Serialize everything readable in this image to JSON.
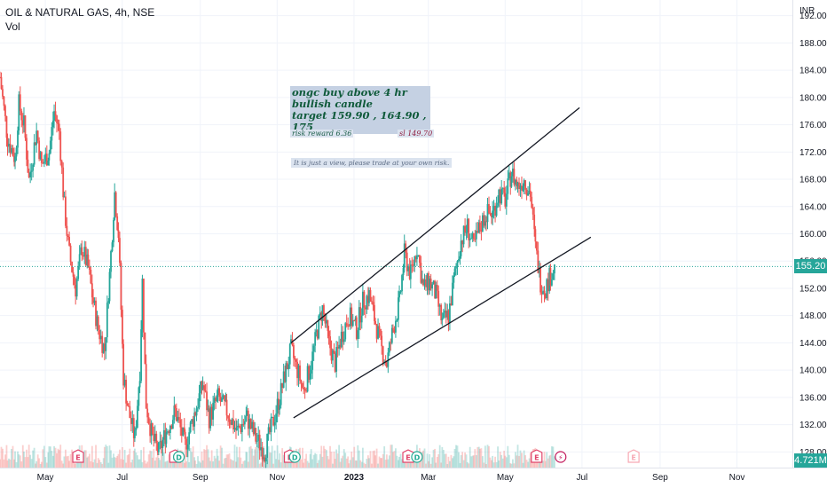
{
  "header": {
    "symbol_line": "OIL & NATURAL GAS, 4h, NSE",
    "volume_label": "Vol",
    "currency": "INR"
  },
  "price_tag": {
    "value": "155.20",
    "color": "#26a69a"
  },
  "volume_tag": {
    "value": "4.721M",
    "color": "#26a69a"
  },
  "annotations": {
    "main_line1": "ongc buy above 4 hr bullish candle",
    "main_line2": "target 159.90 , 164.90 , 175",
    "risk_reward": "risk reward 6.36",
    "stop_loss": "sl 149.70",
    "disclaimer": "It is just a view, please trade at your own risk."
  },
  "colors": {
    "up": "#26a69a",
    "down": "#ef5350",
    "grid": "#f0f3fa",
    "trendline": "#131722"
  },
  "chart_data": {
    "type": "line",
    "title": "OIL & NATURAL GAS, 4h, NSE",
    "y_axis": {
      "ticks": [
        128,
        132,
        136,
        140,
        144,
        148,
        152,
        156,
        160,
        164,
        168,
        172,
        176,
        180,
        184,
        188,
        192
      ],
      "range": [
        127,
        193
      ],
      "unit": "INR"
    },
    "x_axis": {
      "ticks": [
        "May",
        "Jul",
        "Sep",
        "Nov",
        "2023",
        "Mar",
        "May",
        "Jul",
        "Sep",
        "Nov"
      ],
      "tick_dates": [
        "2022-05-01",
        "2022-07-01",
        "2022-09-01",
        "2022-11-01",
        "2023-01-01",
        "2023-03-01",
        "2023-05-01",
        "2023-07-01",
        "2023-09-01",
        "2023-11-01"
      ],
      "range": [
        "2022-03-26",
        "2023-12-15"
      ]
    },
    "series": [
      {
        "values": [
          [
            "2022-03-26",
            183
          ],
          [
            "2022-04-01",
            174
          ],
          [
            "2022-04-07",
            171
          ],
          [
            "2022-04-10",
            179
          ],
          [
            "2022-04-14",
            176
          ],
          [
            "2022-04-18",
            168
          ],
          [
            "2022-04-24",
            175
          ],
          [
            "2022-04-28",
            170
          ],
          [
            "2022-05-04",
            172
          ],
          [
            "2022-05-08",
            178
          ],
          [
            "2022-05-12",
            175
          ],
          [
            "2022-05-16",
            164
          ],
          [
            "2022-05-20",
            157
          ],
          [
            "2022-05-25",
            152
          ],
          [
            "2022-05-30",
            158
          ],
          [
            "2022-06-04",
            155
          ],
          [
            "2022-06-08",
            150
          ],
          [
            "2022-06-12",
            146
          ],
          [
            "2022-06-17",
            143
          ],
          [
            "2022-06-21",
            154
          ],
          [
            "2022-06-25",
            166
          ],
          [
            "2022-06-28",
            160
          ],
          [
            "2022-07-02",
            139
          ],
          [
            "2022-07-06",
            134
          ],
          [
            "2022-07-11",
            130
          ],
          [
            "2022-07-15",
            140
          ],
          [
            "2022-07-17",
            153
          ],
          [
            "2022-07-20",
            135
          ],
          [
            "2022-07-25",
            130
          ],
          [
            "2022-07-30",
            128
          ],
          [
            "2022-08-05",
            131
          ],
          [
            "2022-08-12",
            134
          ],
          [
            "2022-08-20",
            129
          ],
          [
            "2022-08-28",
            134
          ],
          [
            "2022-09-03",
            138
          ],
          [
            "2022-09-08",
            133
          ],
          [
            "2022-09-15",
            136
          ],
          [
            "2022-09-22",
            134
          ],
          [
            "2022-09-30",
            131
          ],
          [
            "2022-10-08",
            133
          ],
          [
            "2022-10-15",
            130
          ],
          [
            "2022-10-22",
            128
          ],
          [
            "2022-10-28",
            132
          ],
          [
            "2022-11-03",
            136
          ],
          [
            "2022-11-08",
            140
          ],
          [
            "2022-11-12",
            143
          ],
          [
            "2022-11-17",
            140
          ],
          [
            "2022-11-22",
            137
          ],
          [
            "2022-11-28",
            141
          ],
          [
            "2022-12-03",
            146
          ],
          [
            "2022-12-07",
            149
          ],
          [
            "2022-12-12",
            144
          ],
          [
            "2022-12-17",
            141
          ],
          [
            "2022-12-22",
            145
          ],
          [
            "2022-12-28",
            148
          ],
          [
            "2023-01-03",
            146
          ],
          [
            "2023-01-08",
            150
          ],
          [
            "2023-01-13",
            151
          ],
          [
            "2023-01-18",
            147
          ],
          [
            "2023-01-23",
            143
          ],
          [
            "2023-01-27",
            141
          ],
          [
            "2023-02-01",
            146
          ],
          [
            "2023-02-06",
            150
          ],
          [
            "2023-02-10",
            157
          ],
          [
            "2023-02-15",
            154
          ],
          [
            "2023-02-20",
            158
          ],
          [
            "2023-02-25",
            152
          ],
          [
            "2023-03-02",
            153
          ],
          [
            "2023-03-07",
            151
          ],
          [
            "2023-03-12",
            147
          ],
          [
            "2023-03-17",
            148
          ],
          [
            "2023-03-22",
            154
          ],
          [
            "2023-03-27",
            159
          ],
          [
            "2023-04-01",
            161
          ],
          [
            "2023-04-06",
            158
          ],
          [
            "2023-04-11",
            161
          ],
          [
            "2023-04-16",
            163
          ],
          [
            "2023-04-21",
            163
          ],
          [
            "2023-04-26",
            166
          ],
          [
            "2023-05-01",
            165
          ],
          [
            "2023-05-06",
            169
          ],
          [
            "2023-05-11",
            167
          ],
          [
            "2023-05-16",
            168
          ],
          [
            "2023-05-21",
            166
          ],
          [
            "2023-05-25",
            158
          ],
          [
            "2023-05-29",
            153
          ],
          [
            "2023-06-02",
            152
          ],
          [
            "2023-06-06",
            154
          ],
          [
            "2023-06-10",
            155.2
          ]
        ]
      }
    ],
    "volume": {
      "label": "Vol",
      "last": "4.721M"
    },
    "trendlines": [
      {
        "name": "upper channel",
        "from": [
          "2022-11-12",
          144
        ],
        "to": [
          "2023-06-29",
          178.5
        ]
      },
      {
        "name": "lower channel",
        "from": [
          "2022-11-14",
          133
        ],
        "to": [
          "2023-07-08",
          159.5
        ]
      }
    ],
    "last_price": 155.2,
    "events": [
      {
        "date": "2022-05-27",
        "label": "E"
      },
      {
        "date": "2022-08-12",
        "label": "E"
      },
      {
        "date": "2022-08-15",
        "label": "D"
      },
      {
        "date": "2022-11-11",
        "label": "E"
      },
      {
        "date": "2022-11-15",
        "label": "D"
      },
      {
        "date": "2023-02-13",
        "label": "E"
      },
      {
        "date": "2023-02-20",
        "label": "D"
      },
      {
        "date": "2023-05-26",
        "label": "E"
      },
      {
        "date": "2023-06-14",
        "label": "⚡"
      },
      {
        "date": "2023-08-11",
        "label": "E"
      }
    ],
    "grid": true
  }
}
